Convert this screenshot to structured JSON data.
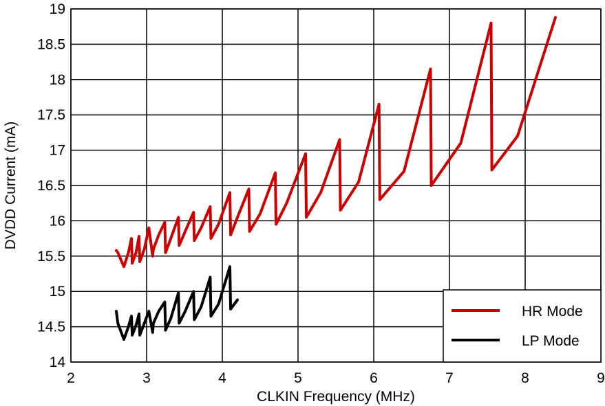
{
  "chart_data": {
    "type": "line",
    "title": "",
    "xlabel": "CLKIN Frequency (MHz)",
    "ylabel": "DVDD Current (mA)",
    "xlim": [
      2,
      9
    ],
    "ylim": [
      14,
      19
    ],
    "xticks": [
      2,
      3,
      4,
      5,
      6,
      7,
      8,
      9
    ],
    "yticks": [
      14,
      14.5,
      15,
      15.5,
      16,
      16.5,
      17,
      17.5,
      18,
      18.5,
      19
    ],
    "xtick_labels": [
      "2",
      "3",
      "4",
      "5",
      "6",
      "7",
      "8",
      "9"
    ],
    "ytick_labels": [
      "14",
      "14.5",
      "15",
      "15.5",
      "16",
      "16.5",
      "17",
      "17.5",
      "18",
      "18.5",
      "19"
    ],
    "grid": true,
    "legend": {
      "placement": "bottom-right"
    },
    "series": [
      {
        "name": "HR Mode",
        "color": "#cc0000",
        "x": [
          2.6,
          2.62,
          2.7,
          2.76,
          2.8,
          2.81,
          2.86,
          2.9,
          2.91,
          2.97,
          3.03,
          3.08,
          3.09,
          3.16,
          3.24,
          3.25,
          3.32,
          3.42,
          3.43,
          3.51,
          3.62,
          3.63,
          3.72,
          3.84,
          3.85,
          3.95,
          4.1,
          4.11,
          4.2,
          4.35,
          4.36,
          4.5,
          4.7,
          4.71,
          4.85,
          5.1,
          5.11,
          5.3,
          5.55,
          5.56,
          5.8,
          6.07,
          6.08,
          6.4,
          6.75,
          6.76,
          7.15,
          7.55,
          7.56,
          7.9,
          8.4
        ],
        "y": [
          15.58,
          15.55,
          15.35,
          15.55,
          15.75,
          15.4,
          15.55,
          15.78,
          15.42,
          15.6,
          15.9,
          15.5,
          15.6,
          15.8,
          15.98,
          15.55,
          15.75,
          16.05,
          15.65,
          15.85,
          16.12,
          15.72,
          15.9,
          16.2,
          15.75,
          15.95,
          16.4,
          15.8,
          16.05,
          16.45,
          15.85,
          16.1,
          16.68,
          15.95,
          16.25,
          16.95,
          16.05,
          16.4,
          17.15,
          16.15,
          16.55,
          17.65,
          16.3,
          16.7,
          18.15,
          16.5,
          17.1,
          18.8,
          16.72,
          17.2,
          18.88
        ]
      },
      {
        "name": "LP Mode",
        "color": "#000000",
        "x": [
          2.6,
          2.62,
          2.7,
          2.76,
          2.8,
          2.81,
          2.86,
          2.9,
          2.91,
          2.97,
          3.03,
          3.08,
          3.09,
          3.16,
          3.24,
          3.25,
          3.32,
          3.42,
          3.43,
          3.51,
          3.62,
          3.63,
          3.72,
          3.84,
          3.85,
          3.95,
          4.1,
          4.11,
          4.2
        ],
        "y": [
          14.72,
          14.55,
          14.32,
          14.5,
          14.65,
          14.38,
          14.52,
          14.68,
          14.38,
          14.55,
          14.72,
          14.42,
          14.55,
          14.72,
          14.85,
          14.45,
          14.62,
          14.98,
          14.55,
          14.72,
          15.0,
          14.6,
          14.78,
          15.2,
          14.65,
          14.82,
          15.35,
          14.75,
          14.88
        ]
      }
    ]
  }
}
